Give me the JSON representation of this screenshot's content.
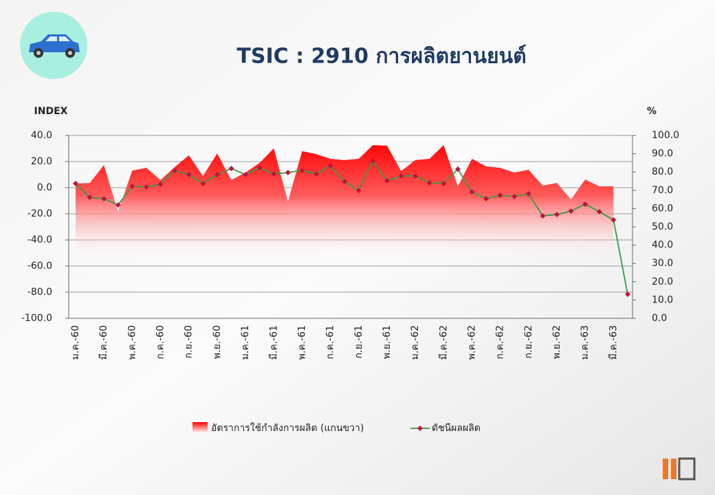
{
  "chart_data": {
    "type": "line",
    "title": "TSIC : 2910 การผลิตยานยนต์",
    "y_label": "INDEX",
    "y2_label": "%",
    "categories": [
      "ม.ค.-60",
      null,
      "มี.ค.-60",
      null,
      "พ.ค.-60",
      null,
      "ก.ค.-60",
      null,
      "ก.ย.-60",
      null,
      "พ.ย.-60",
      null,
      "ม.ค.-61",
      null,
      "มี.ค.-61",
      null,
      "พ.ค.-61",
      null,
      "ก.ค.-61",
      null,
      "ก.ย.-61",
      null,
      "พ.ย.-61",
      null,
      "ม.ค.-62",
      null,
      "มี.ค.-62",
      null,
      "พ.ค.-62",
      null,
      "ก.ค.-62",
      null,
      "ก.ย.-62",
      null,
      "พ.ย.-62",
      null,
      "ม.ค.-63",
      null,
      "มี.ค.-63",
      null
    ],
    "series": [
      {
        "name": "อัตราการใช้กำลังการผลิต (แกนขวา)",
        "type": "area",
        "axis": "y2",
        "color": "#ff0000",
        "values": [
          73.7,
          74,
          83.8,
          58.3,
          80.8,
          82.3,
          75.6,
          82.7,
          89.1,
          77.8,
          90.2,
          75.6,
          79.7,
          85,
          92.9,
          63.9,
          91.4,
          89.8,
          87.2,
          86.5,
          87.2,
          94.7,
          94.4,
          80.5,
          86.5,
          87.2,
          94.7,
          72.2,
          87.2,
          83.1,
          82.3,
          79.7,
          81.2,
          72.6,
          74,
          65,
          75.9,
          72.2,
          72.2,
          null
        ]
      },
      {
        "name": "ดัชนีผลผลิต",
        "type": "line",
        "color": "#2e9e3e",
        "marker_color": "#c0143c",
        "values": [
          3.2,
          -7.4,
          -8.4,
          -13.2,
          1.1,
          0.5,
          2.6,
          13.2,
          10,
          3.2,
          10,
          14.7,
          10,
          15.3,
          10.5,
          11.6,
          13.2,
          10.5,
          16.8,
          4.7,
          -2.1,
          20.5,
          5.3,
          9,
          9,
          3.7,
          3.2,
          14.2,
          -3.2,
          -8.4,
          -5.8,
          -6.8,
          -4.7,
          -21.6,
          -20.5,
          -17.9,
          -12.6,
          -18.4,
          -24.7,
          -81.6
        ]
      }
    ],
    "ylim": [
      -100,
      40
    ],
    "yticks": [
      {
        "value": -100,
        "label": "-100.0"
      },
      {
        "value": -80,
        "label": "-80.0"
      },
      {
        "value": -60,
        "label": "-60.0"
      },
      {
        "value": -40,
        "label": "-40.0"
      },
      {
        "value": -20,
        "label": "-20.0"
      },
      {
        "value": 0,
        "label": "0.0"
      },
      {
        "value": 20,
        "label": "20.0"
      },
      {
        "value": 40,
        "label": "40.0"
      }
    ],
    "y2lim": [
      0,
      100
    ],
    "y2ticks": [
      {
        "value": 0,
        "label": "0.0"
      },
      {
        "value": 10,
        "label": "10.0"
      },
      {
        "value": 20,
        "label": "20.0"
      },
      {
        "value": 30,
        "label": "30.0"
      },
      {
        "value": 40,
        "label": "40.0"
      },
      {
        "value": 50,
        "label": "50.0"
      },
      {
        "value": 60,
        "label": "60.0"
      },
      {
        "value": 70,
        "label": "70.0"
      },
      {
        "value": 80,
        "label": "80.0"
      },
      {
        "value": 90,
        "label": "90.0"
      },
      {
        "value": 100,
        "label": "100.0"
      }
    ],
    "grid": true,
    "legend": "bottom"
  }
}
